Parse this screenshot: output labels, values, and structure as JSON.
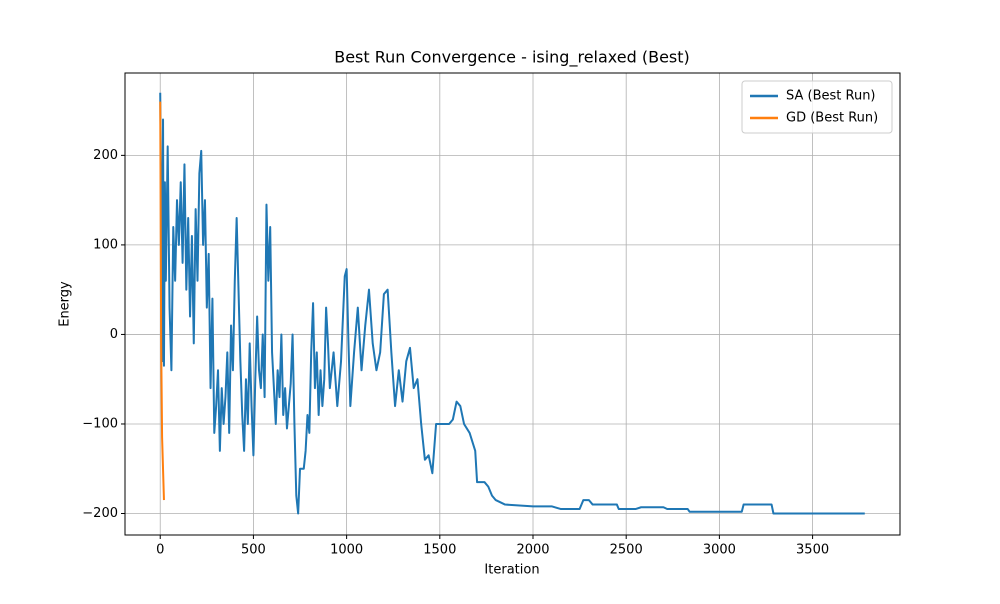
{
  "chart_data": {
    "type": "line",
    "title": "Best Run Convergence - ising_relaxed (Best)",
    "xlabel": "Iteration",
    "ylabel": "Energy",
    "xlim": [
      -189,
      3969
    ],
    "ylim": [
      -224,
      292
    ],
    "xticks": [
      0,
      500,
      1000,
      1500,
      2000,
      2500,
      3000,
      3500
    ],
    "yticks": [
      {
        "value": -200,
        "label": "−200"
      },
      {
        "value": -100,
        "label": "−100"
      },
      0,
      100,
      200
    ],
    "grid": true,
    "legend": "upper right",
    "series": [
      {
        "name": "SA (Best Run)",
        "color": "#1f77b4",
        "x": [
          0,
          5,
          10,
          15,
          20,
          25,
          30,
          40,
          50,
          60,
          70,
          80,
          90,
          100,
          110,
          120,
          130,
          140,
          150,
          160,
          170,
          180,
          190,
          200,
          210,
          220,
          230,
          240,
          250,
          260,
          270,
          280,
          290,
          300,
          310,
          320,
          330,
          340,
          350,
          360,
          370,
          380,
          390,
          400,
          410,
          420,
          430,
          440,
          450,
          460,
          470,
          480,
          490,
          500,
          510,
          520,
          530,
          540,
          550,
          560,
          570,
          580,
          590,
          600,
          610,
          620,
          630,
          640,
          650,
          660,
          670,
          680,
          690,
          700,
          710,
          720,
          730,
          740,
          750,
          770,
          780,
          790,
          800,
          810,
          820,
          830,
          840,
          850,
          860,
          870,
          880,
          890,
          900,
          910,
          930,
          950,
          970,
          990,
          1000,
          1010,
          1020,
          1040,
          1060,
          1080,
          1100,
          1120,
          1140,
          1160,
          1180,
          1200,
          1220,
          1240,
          1260,
          1280,
          1300,
          1320,
          1340,
          1360,
          1380,
          1400,
          1420,
          1440,
          1460,
          1480,
          1550,
          1570,
          1590,
          1610,
          1630,
          1660,
          1690,
          1700,
          1740,
          1760,
          1780,
          1800,
          1850,
          2000,
          2100,
          2150,
          2250,
          2270,
          2300,
          2320,
          2450,
          2460,
          2550,
          2580,
          2700,
          2720,
          2830,
          2840,
          3120,
          3130,
          3280,
          3290,
          3780
        ],
        "values": [
          270,
          150,
          -30,
          240,
          -35,
          170,
          60,
          210,
          30,
          -40,
          120,
          60,
          150,
          100,
          170,
          80,
          190,
          50,
          130,
          20,
          110,
          -10,
          140,
          60,
          180,
          205,
          100,
          150,
          30,
          90,
          -60,
          40,
          -110,
          -80,
          -40,
          -130,
          -60,
          -100,
          -70,
          -20,
          -110,
          10,
          -40,
          60,
          130,
          50,
          -30,
          -90,
          -130,
          -50,
          -100,
          -10,
          -80,
          -135,
          -50,
          20,
          -40,
          -60,
          0,
          -70,
          145,
          60,
          120,
          -20,
          -60,
          -100,
          -40,
          -70,
          0,
          -90,
          -60,
          -105,
          -80,
          -55,
          0,
          -100,
          -180,
          -200,
          -150,
          -150,
          -130,
          -90,
          -110,
          -20,
          35,
          -60,
          -20,
          -90,
          -40,
          -80,
          -50,
          30,
          -10,
          -60,
          -20,
          -80,
          -30,
          65,
          73,
          -10,
          -80,
          -20,
          30,
          -40,
          10,
          50,
          -10,
          -40,
          -20,
          45,
          50,
          -20,
          -80,
          -40,
          -75,
          -30,
          -15,
          -60,
          -50,
          -100,
          -140,
          -135,
          -155,
          -100,
          -100,
          -95,
          -75,
          -80,
          -100,
          -110,
          -130,
          -165,
          -165,
          -170,
          -180,
          -185,
          -190,
          -192,
          -192,
          -195,
          -195,
          -185,
          -185,
          -190,
          -190,
          -195,
          -195,
          -193,
          -193,
          -195,
          -195,
          -198,
          -198,
          -190,
          -190,
          -200,
          -200
        ]
      },
      {
        "name": "GD (Best Run)",
        "color": "#ff7f0e",
        "x": [
          0,
          5,
          10,
          15,
          20
        ],
        "values": [
          260,
          -10,
          -115,
          -150,
          -185
        ]
      }
    ]
  }
}
